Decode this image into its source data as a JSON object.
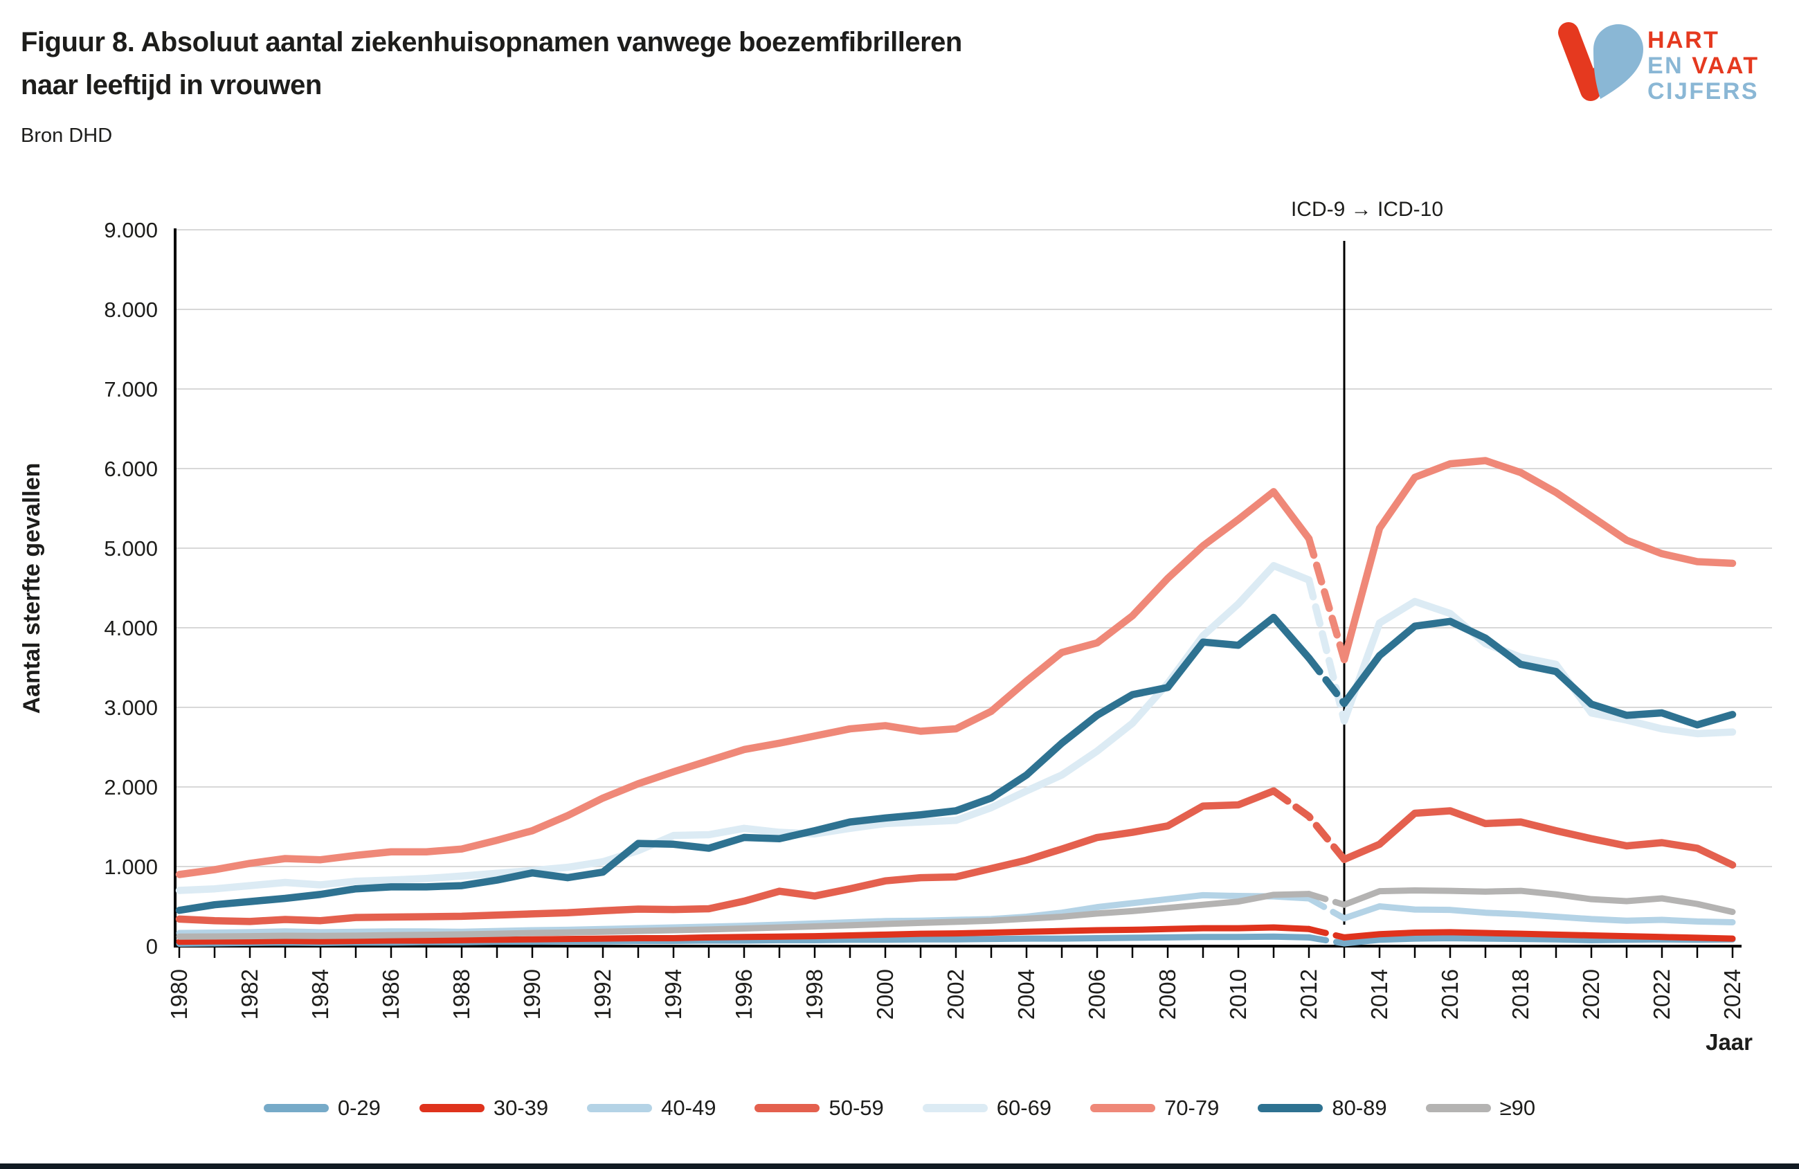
{
  "header": {
    "title_line1": "Figuur 8. Absoluut aantal ziekenhuisopnamen vanwege boezemfibrilleren",
    "title_line2": "naar leeftijd in vrouwen",
    "source": "Bron DHD"
  },
  "logo": {
    "word1": "HART",
    "word2a": "EN",
    "word2b": "VAAT",
    "word3": "CIJFERS",
    "red": "#e5391f",
    "blue": "#8ab7d5"
  },
  "colors": {
    "text": "#1d1d1b",
    "gridline": "#d8d8d8",
    "axis": "#000000"
  },
  "chart_data": {
    "type": "line",
    "title": "Figuur 8. Absoluut aantal ziekenhuisopnamen vanwege boezemfibrilleren naar leeftijd in vrouwen",
    "source": "Bron DHD",
    "xlabel": "Jaar",
    "ylabel": "Aantal sterfte gevallen",
    "ylim": [
      0,
      9000
    ],
    "ytick_step": 1000,
    "ytick_labels": [
      "0",
      "1.000",
      "2.000",
      "3.000",
      "4.000",
      "5.000",
      "6.000",
      "7.000",
      "8.000",
      "9.000"
    ],
    "x_range": [
      1980,
      2024
    ],
    "xtick_label_step": 2,
    "xtick_labels": [
      "1980",
      "1982",
      "1984",
      "1986",
      "1988",
      "1990",
      "1992",
      "1994",
      "1996",
      "1998",
      "2000",
      "2002",
      "2004",
      "2006",
      "2008",
      "2010",
      "2012",
      "2014",
      "2016",
      "2018",
      "2020",
      "2022",
      "2024"
    ],
    "grid": "horizontal",
    "legend_position": "bottom",
    "annotation": {
      "text": "ICD-9 → ICD-10",
      "year": 2013
    },
    "x": [
      1980,
      1981,
      1982,
      1983,
      1984,
      1985,
      1986,
      1987,
      1988,
      1989,
      1990,
      1991,
      1992,
      1993,
      1994,
      1995,
      1996,
      1997,
      1998,
      1999,
      2000,
      2001,
      2002,
      2003,
      2004,
      2005,
      2006,
      2007,
      2008,
      2009,
      2010,
      2011,
      2012,
      2013,
      2014,
      2015,
      2016,
      2017,
      2018,
      2019,
      2020,
      2021,
      2022,
      2023,
      2024
    ],
    "series": [
      {
        "name": "0-29",
        "color": "#76aac8",
        "width": 9,
        "dash": [
          2012,
          2013
        ],
        "values": [
          30,
          35,
          40,
          45,
          40,
          45,
          45,
          50,
          50,
          55,
          55,
          60,
          60,
          65,
          65,
          70,
          70,
          75,
          75,
          80,
          80,
          85,
          85,
          90,
          95,
          95,
          100,
          105,
          110,
          115,
          115,
          120,
          110,
          35,
          80,
          95,
          100,
          95,
          90,
          85,
          75,
          80,
          85,
          80,
          85
        ]
      },
      {
        "name": "30-39",
        "color": "#df331d",
        "width": 9,
        "dash": [
          2012,
          2013
        ],
        "values": [
          55,
          60,
          60,
          65,
          60,
          65,
          70,
          70,
          75,
          80,
          85,
          90,
          95,
          100,
          100,
          110,
          115,
          120,
          125,
          135,
          145,
          155,
          160,
          170,
          180,
          190,
          200,
          205,
          215,
          225,
          225,
          235,
          215,
          110,
          150,
          170,
          175,
          165,
          155,
          145,
          135,
          125,
          115,
          105,
          95
        ]
      },
      {
        "name": "40-49",
        "color": "#b4d3e6",
        "width": 9,
        "dash": [
          2012,
          2013
        ],
        "values": [
          165,
          170,
          175,
          185,
          175,
          180,
          185,
          185,
          180,
          190,
          200,
          205,
          215,
          225,
          235,
          245,
          255,
          270,
          285,
          300,
          315,
          320,
          330,
          340,
          370,
          420,
          490,
          540,
          590,
          640,
          630,
          625,
          600,
          350,
          500,
          460,
          455,
          420,
          400,
          370,
          340,
          320,
          330,
          310,
          300
        ]
      },
      {
        "name": "50-59",
        "color": "#e4604e",
        "width": 10.5,
        "dash": [
          2011,
          2013
        ],
        "values": [
          340,
          320,
          310,
          335,
          320,
          360,
          365,
          370,
          375,
          390,
          405,
          420,
          445,
          465,
          460,
          470,
          565,
          690,
          630,
          720,
          820,
          860,
          870,
          975,
          1080,
          1220,
          1365,
          1430,
          1510,
          1760,
          1775,
          1950,
          1630,
          1090,
          1280,
          1670,
          1700,
          1540,
          1560,
          1450,
          1350,
          1260,
          1300,
          1230,
          1020
        ]
      },
      {
        "name": "60-69",
        "color": "#dcebf4",
        "width": 10.5,
        "dash": [
          2012,
          2013
        ],
        "values": [
          700,
          720,
          760,
          800,
          770,
          815,
          830,
          850,
          880,
          915,
          950,
          990,
          1060,
          1200,
          1390,
          1400,
          1480,
          1430,
          1410,
          1480,
          1540,
          1560,
          1580,
          1740,
          1950,
          2150,
          2450,
          2800,
          3300,
          3900,
          4300,
          4780,
          4600,
          2830,
          4060,
          4330,
          4180,
          3800,
          3630,
          3540,
          2930,
          2840,
          2730,
          2670,
          2690
        ]
      },
      {
        "name": "70-79",
        "color": "#ef8878",
        "width": 10.5,
        "dash": [
          2012,
          2013
        ],
        "values": [
          900,
          960,
          1040,
          1100,
          1085,
          1140,
          1185,
          1185,
          1220,
          1330,
          1450,
          1640,
          1860,
          2040,
          2190,
          2330,
          2470,
          2550,
          2640,
          2730,
          2770,
          2700,
          2730,
          2950,
          3330,
          3690,
          3810,
          4150,
          4620,
          5030,
          5360,
          5710,
          5120,
          3600,
          5250,
          5890,
          6060,
          6100,
          5950,
          5700,
          5400,
          5100,
          4930,
          4830,
          4810
        ]
      },
      {
        "name": "80-89",
        "color": "#2e7291",
        "width": 10.5,
        "dash": [
          2012,
          2013
        ],
        "values": [
          450,
          520,
          560,
          600,
          650,
          720,
          745,
          745,
          760,
          830,
          920,
          860,
          930,
          1290,
          1280,
          1230,
          1365,
          1350,
          1450,
          1560,
          1610,
          1650,
          1700,
          1860,
          2150,
          2550,
          2900,
          3160,
          3250,
          3820,
          3780,
          4130,
          3620,
          3050,
          3650,
          4020,
          4080,
          3870,
          3540,
          3450,
          3040,
          2900,
          2930,
          2780,
          2910
        ]
      },
      {
        "name": "≥90",
        "color": "#b4b3b2",
        "width": 9,
        "dash": [
          2012,
          2013
        ],
        "values": [
          120,
          122,
          125,
          130,
          128,
          132,
          138,
          142,
          148,
          155,
          165,
          172,
          180,
          190,
          200,
          210,
          222,
          235,
          248,
          262,
          278,
          292,
          305,
          320,
          345,
          370,
          410,
          440,
          480,
          520,
          560,
          645,
          655,
          520,
          690,
          700,
          695,
          685,
          695,
          650,
          590,
          565,
          600,
          530,
          430
        ]
      }
    ]
  }
}
